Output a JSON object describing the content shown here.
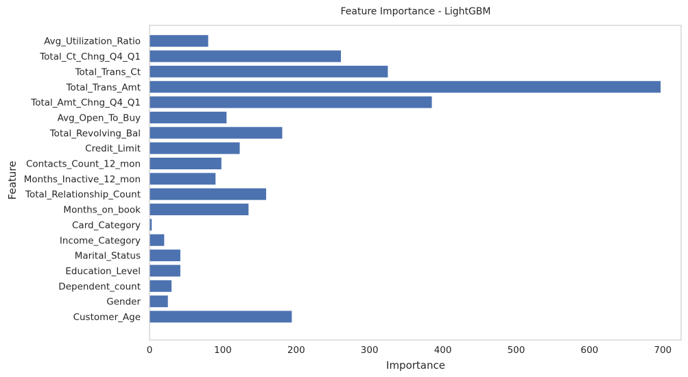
{
  "chart_data": {
    "type": "bar",
    "orientation": "horizontal",
    "title": "Feature Importance - LightGBM",
    "xlabel": "Importance",
    "ylabel": "Feature",
    "xlim": [
      0,
      725
    ],
    "xticks": [
      0,
      100,
      200,
      300,
      400,
      500,
      600,
      700
    ],
    "grid": false,
    "bar_color": "#4c72b0",
    "categories": [
      "Customer_Age",
      "Gender",
      "Dependent_count",
      "Education_Level",
      "Marital_Status",
      "Income_Category",
      "Card_Category",
      "Months_on_book",
      "Total_Relationship_Count",
      "Months_Inactive_12_mon",
      "Contacts_Count_12_mon",
      "Credit_Limit",
      "Total_Revolving_Bal",
      "Avg_Open_To_Buy",
      "Total_Amt_Chng_Q4_Q1",
      "Total_Trans_Amt",
      "Total_Trans_Ct",
      "Total_Ct_Chng_Q4_Q1",
      "Avg_Utilization_Ratio"
    ],
    "values": [
      194,
      25,
      30,
      42,
      42,
      20,
      3,
      135,
      159,
      90,
      98,
      123,
      181,
      105,
      385,
      697,
      325,
      261,
      80
    ]
  }
}
